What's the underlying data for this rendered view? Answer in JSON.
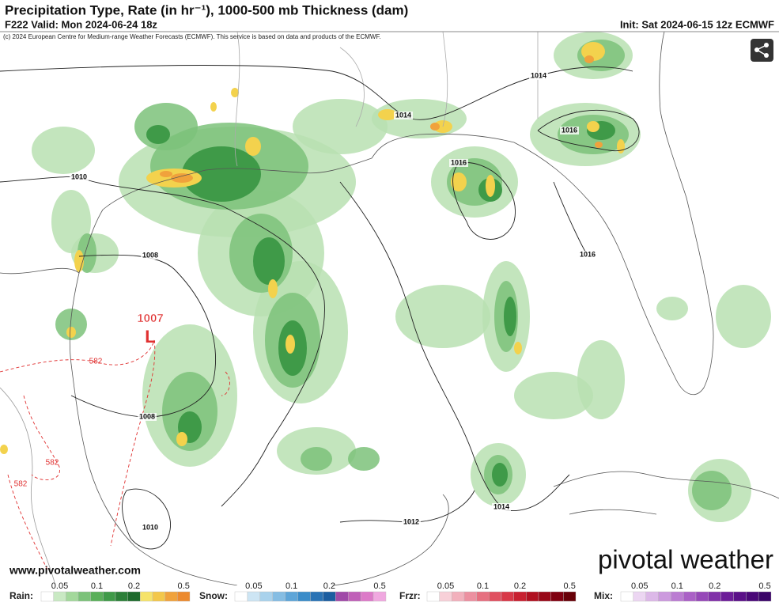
{
  "header": {
    "title": "Precipitation Type, Rate (in hr⁻¹), 1000-500 mb Thickness (dam)",
    "valid": "F222 Valid: Mon 2024-06-24 18z",
    "init": "Init: Sat 2024-06-15 12z ECMWF",
    "credit": "(c) 2024 European Centre for Medium-range Weather Forecasts (ECMWF). This service is based on data and products of the ECMWF."
  },
  "map": {
    "isobar_labels": [
      "1014",
      "1014",
      "1016",
      "1016",
      "1010",
      "1008",
      "1016",
      "1008",
      "1014",
      "1012",
      "1010"
    ],
    "thickness_labels": [
      "582",
      "582",
      "582"
    ],
    "low": {
      "pressure": "1007",
      "symbol": "L"
    }
  },
  "footer": {
    "website": "www.pivotalweather.com",
    "brand": "pivotal weather"
  },
  "legend": [
    {
      "label": "Rain:",
      "ticks": [
        "0.05",
        "0.1",
        "0.2",
        "0.5"
      ]
    },
    {
      "label": "Snow:",
      "ticks": [
        "0.05",
        "0.1",
        "0.2",
        "0.5"
      ]
    },
    {
      "label": "Frzr:",
      "ticks": [
        "0.05",
        "0.1",
        "0.2",
        "0.5"
      ]
    },
    {
      "label": "Mix:",
      "ticks": [
        "0.05",
        "0.1",
        "0.2",
        "0.5"
      ]
    }
  ]
}
